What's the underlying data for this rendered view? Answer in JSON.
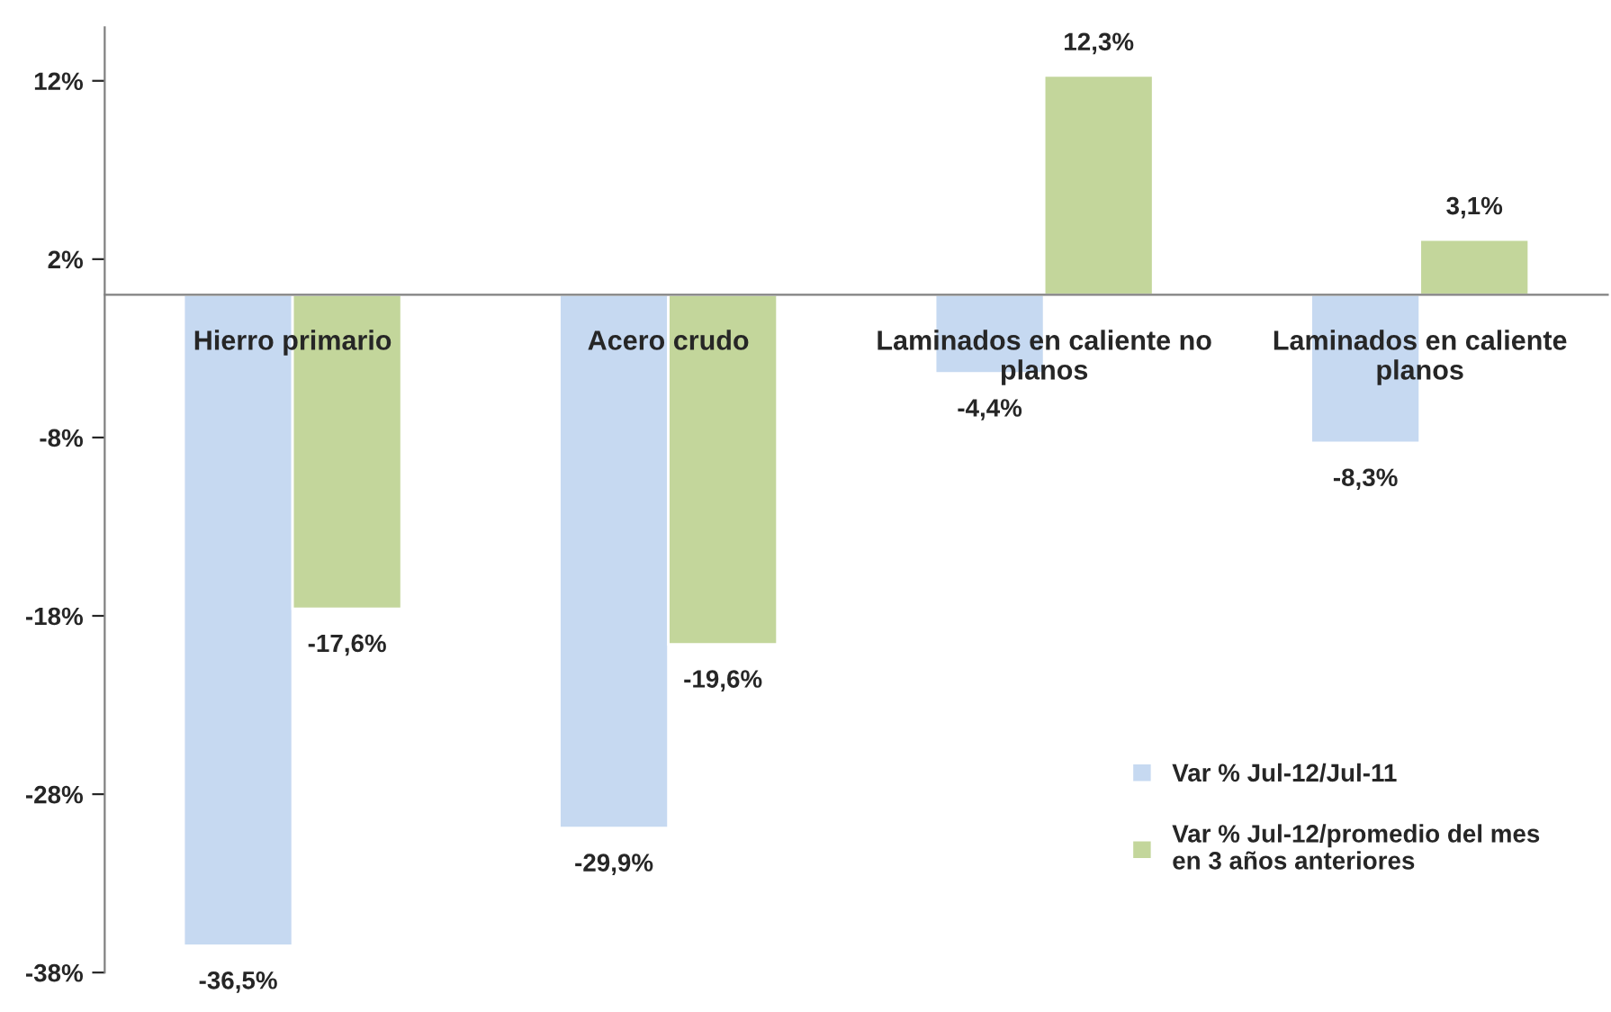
{
  "chart_data": {
    "type": "bar",
    "categories": [
      "Hierro primario",
      "Acero crudo",
      "Laminados en caliente no\nplanos",
      "Laminados en caliente\nplanos"
    ],
    "series": [
      {
        "name": "Var % Jul-12/Jul-11",
        "color": "#c6d9f1",
        "values": [
          -36.5,
          -29.9,
          -4.4,
          -8.3
        ],
        "value_labels": [
          "-36,5%",
          "-29,9%",
          "-4,4%",
          "-8,3%"
        ]
      },
      {
        "name": "Var % Jul-12/promedio del mes\nen 3 años anteriores",
        "color": "#c3d69b",
        "values": [
          -17.6,
          -19.6,
          12.3,
          3.1
        ],
        "value_labels": [
          "-17,6%",
          "-19,6%",
          "12,3%",
          "3,1%"
        ]
      }
    ],
    "ylim": [
      -38,
      15
    ],
    "yticks": [
      {
        "value": 12,
        "label": "12%"
      },
      {
        "value": 2,
        "label": "2%"
      },
      {
        "value": -8,
        "label": "-8%"
      },
      {
        "value": -18,
        "label": "-18%"
      },
      {
        "value": -28,
        "label": "-28%"
      },
      {
        "value": -38,
        "label": "-38%"
      }
    ],
    "grid": false,
    "legend": "bottom right"
  }
}
